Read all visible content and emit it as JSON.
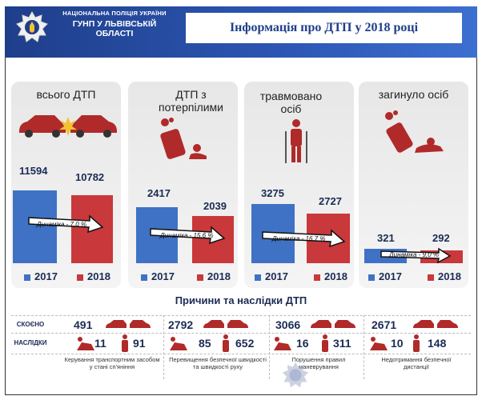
{
  "header": {
    "org_line1": "НАЦІОНАЛЬНА ПОЛІЦІЯ УКРАЇНИ",
    "org_line2": "ГУНП У ЛЬВІВСЬКІЙ",
    "org_line3": "ОБЛАСТІ",
    "title": "Інформація про ДТП у 2018 році"
  },
  "panels": [
    {
      "title": "всього ДТП",
      "v2017": "11594",
      "v2018": "10782",
      "dynamics": "Динаміка - 7,0 %",
      "icon": "car-crash-icon"
    },
    {
      "title": "ДТП з потерпілими",
      "v2017": "2417",
      "v2018": "2039",
      "dynamics": "Динаміка - 15,6 %",
      "icon": "overturned-car-injured-icon"
    },
    {
      "title": "травмовано осіб",
      "v2017": "3275",
      "v2018": "2727",
      "dynamics": "Динаміка - 16,7 %",
      "icon": "person-crutches-icon"
    },
    {
      "title": "загинуло осіб",
      "v2017": "321",
      "v2018": "292",
      "dynamics": "Динаміка - 9,0 %",
      "icon": "overturned-car-fatal-icon"
    }
  ],
  "legend": {
    "year1": "2017",
    "year2": "2018"
  },
  "chart_data": {
    "type": "bar",
    "categories": [
      "всього ДТП",
      "ДТП з потерпілими",
      "травмовано осіб",
      "загинуло осіб"
    ],
    "series": [
      {
        "name": "2017",
        "values": [
          11594,
          2417,
          3275,
          321
        ]
      },
      {
        "name": "2018",
        "values": [
          10782,
          2039,
          2727,
          292
        ]
      }
    ]
  },
  "causes": {
    "title": "Причини та наслідки ДТП",
    "row_committed": "СКОЄНО",
    "row_consequences": "НАСЛІДКИ",
    "items": [
      {
        "committed": "491",
        "injured": "11",
        "killed": "91",
        "caption": "Керування транспортним засобом у стані сп'яніння"
      },
      {
        "committed": "2792",
        "injured": "85",
        "killed": "652",
        "caption": "Перевищення безпечної швидкості та швидкості руху"
      },
      {
        "committed": "3066",
        "injured": "16",
        "killed": "311",
        "caption": "Порушення правил маневрування"
      },
      {
        "committed": "2671",
        "injured": "10",
        "killed": "148",
        "caption": "Недотримання безпечної дистанції"
      }
    ]
  },
  "colors": {
    "blue": "#3f72c5",
    "red": "#c9383a",
    "navy": "#1f3e8a"
  }
}
